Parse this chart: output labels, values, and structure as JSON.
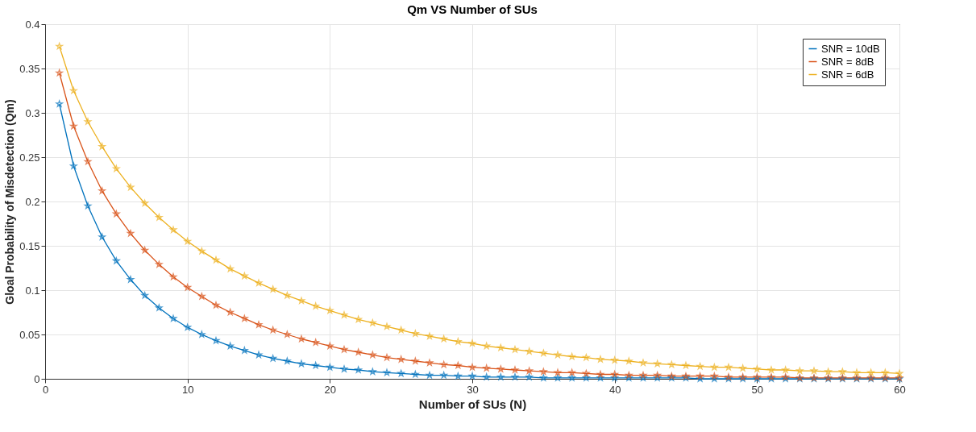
{
  "chart_data": {
    "type": "line",
    "title": "Qm VS Number of SUs",
    "xlabel": "Number of SUs (N)",
    "ylabel": "Gloal Probability of Misdetection (Qm)",
    "x": [
      1,
      2,
      3,
      4,
      5,
      6,
      7,
      8,
      9,
      10,
      11,
      12,
      13,
      14,
      15,
      16,
      17,
      18,
      19,
      20,
      21,
      22,
      23,
      24,
      25,
      26,
      27,
      28,
      29,
      30,
      31,
      32,
      33,
      34,
      35,
      36,
      37,
      38,
      39,
      40,
      41,
      42,
      43,
      44,
      45,
      46,
      47,
      48,
      49,
      50,
      51,
      52,
      53,
      54,
      55,
      56,
      57,
      58,
      59,
      60
    ],
    "series": [
      {
        "name": "SNR = 10dB",
        "color": "#0072bd",
        "values": [
          0.31,
          0.24,
          0.195,
          0.16,
          0.133,
          0.112,
          0.094,
          0.08,
          0.068,
          0.058,
          0.05,
          0.043,
          0.037,
          0.032,
          0.027,
          0.023,
          0.02,
          0.017,
          0.015,
          0.013,
          0.011,
          0.01,
          0.008,
          0.007,
          0.006,
          0.005,
          0.004,
          0.004,
          0.003,
          0.003,
          0.002,
          0.002,
          0.002,
          0.002,
          0.001,
          0.001,
          0.001,
          0.001,
          0.001,
          0.001,
          0.001,
          0.001,
          0.001,
          0.001,
          0.001,
          0,
          0,
          0,
          0,
          0,
          0,
          0,
          0,
          0,
          0,
          0,
          0,
          0,
          0,
          0
        ]
      },
      {
        "name": "SNR = 8dB",
        "color": "#d95319",
        "values": [
          0.345,
          0.285,
          0.245,
          0.212,
          0.186,
          0.164,
          0.145,
          0.129,
          0.115,
          0.103,
          0.093,
          0.083,
          0.075,
          0.068,
          0.061,
          0.055,
          0.05,
          0.045,
          0.041,
          0.037,
          0.033,
          0.03,
          0.027,
          0.024,
          0.022,
          0.02,
          0.018,
          0.016,
          0.015,
          0.013,
          0.012,
          0.011,
          0.01,
          0.009,
          0.008,
          0.007,
          0.007,
          0.006,
          0.005,
          0.005,
          0.004,
          0.004,
          0.004,
          0.003,
          0.003,
          0.003,
          0.003,
          0.002,
          0.002,
          0.002,
          0.002,
          0.002,
          0.001,
          0.001,
          0.001,
          0.001,
          0.001,
          0.001,
          0.001,
          0.001
        ]
      },
      {
        "name": "SNR = 6dB",
        "color": "#edb120",
        "values": [
          0.375,
          0.325,
          0.29,
          0.262,
          0.237,
          0.216,
          0.198,
          0.182,
          0.168,
          0.155,
          0.144,
          0.134,
          0.124,
          0.116,
          0.108,
          0.101,
          0.094,
          0.088,
          0.082,
          0.077,
          0.072,
          0.067,
          0.063,
          0.059,
          0.055,
          0.051,
          0.048,
          0.045,
          0.042,
          0.04,
          0.037,
          0.035,
          0.033,
          0.031,
          0.029,
          0.027,
          0.025,
          0.024,
          0.022,
          0.021,
          0.02,
          0.018,
          0.017,
          0.016,
          0.015,
          0.014,
          0.013,
          0.013,
          0.012,
          0.011,
          0.01,
          0.01,
          0.009,
          0.009,
          0.008,
          0.008,
          0.007,
          0.007,
          0.007,
          0.006
        ]
      }
    ],
    "xlim": [
      0,
      60
    ],
    "xticks": [
      0,
      10,
      20,
      30,
      40,
      50,
      60
    ],
    "ylim": [
      0,
      0.4
    ],
    "yticks": [
      0,
      0.05,
      0.1,
      0.15,
      0.2,
      0.25,
      0.3,
      0.35,
      0.4
    ],
    "grid": true,
    "legend": "top right",
    "marker": "star",
    "line_style": "solid"
  }
}
